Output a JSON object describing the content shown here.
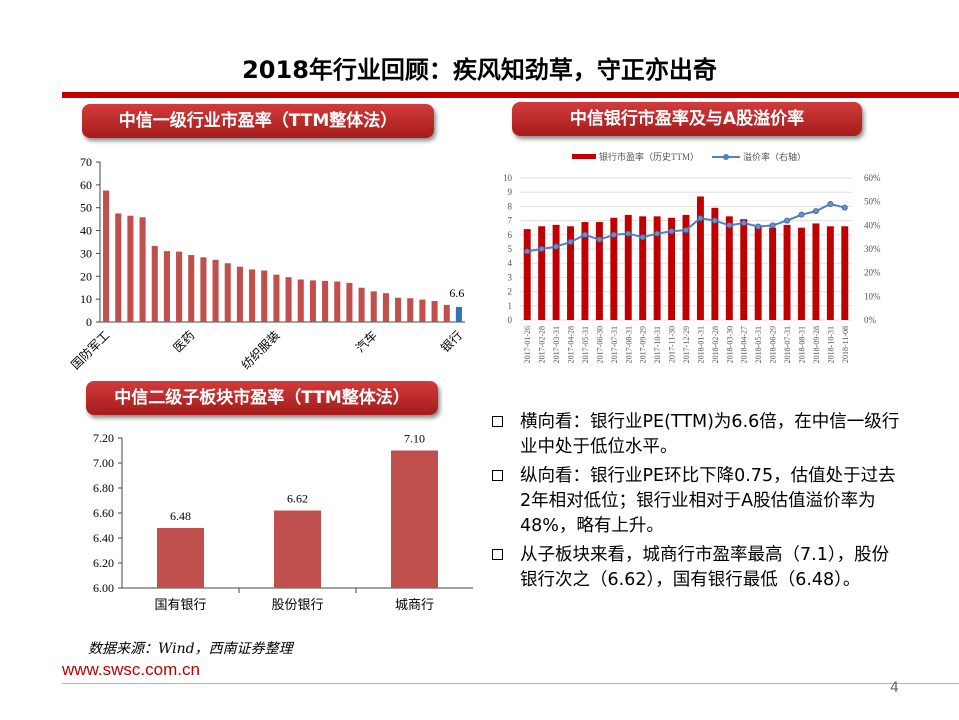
{
  "title": "2018年行业回顾：疾风知劲草，守正亦出奇",
  "pills": {
    "c1": "中信一级行业市盈率（TTM整体法）",
    "c2": "中信银行市盈率及与A股溢价率",
    "c3": "中信二级子板块市盈率（TTM整体法）"
  },
  "chart_data": [
    {
      "type": "bar",
      "ylim": [
        0,
        70
      ],
      "yticks": [
        "0",
        "10",
        "20",
        "30",
        "40",
        "50",
        "60",
        "70"
      ],
      "values": [
        57.5,
        47.5,
        46.5,
        45.8,
        33.3,
        31.0,
        30.8,
        29.3,
        28.3,
        27.2,
        25.7,
        24.2,
        23.0,
        22.5,
        20.7,
        19.6,
        18.6,
        18.2,
        18.0,
        17.7,
        17.1,
        15.0,
        13.4,
        12.6,
        10.6,
        10.4,
        9.8,
        9.2,
        7.5,
        6.6
      ],
      "highlight_index": 29,
      "highlight_label": "6.6",
      "category_labels": [
        {
          "index": 0,
          "text": "国防军工"
        },
        {
          "index": 7,
          "text": "医药"
        },
        {
          "index": 14,
          "text": "纺织服装"
        },
        {
          "index": 22,
          "text": "汽车"
        },
        {
          "index": 29,
          "text": "银行"
        }
      ]
    },
    {
      "type": "bar+line",
      "legend": [
        "银行市盈率（历史TTM）",
        "溢价率（右轴）"
      ],
      "left_ylim": [
        0,
        10
      ],
      "left_ticks": [
        "0",
        "1",
        "2",
        "3",
        "4",
        "5",
        "6",
        "7",
        "8",
        "9",
        "10"
      ],
      "right_ylim": [
        0,
        60
      ],
      "right_ticks": [
        "0%",
        "10%",
        "20%",
        "30%",
        "40%",
        "50%",
        "60%"
      ],
      "x": [
        "2017-01-26",
        "2017-02-28",
        "2017-03-31",
        "2017-04-28",
        "2017-05-31",
        "2017-06-30",
        "2017-07-31",
        "2017-08-31",
        "2017-09-29",
        "2017-10-31",
        "2017-11-30",
        "2017-12-29",
        "2018-01-31",
        "2018-02-28",
        "2018-03-30",
        "2018-04-27",
        "2018-05-31",
        "2018-06-29",
        "2018-07-31",
        "2018-08-31",
        "2018-09-28",
        "2018-10-31",
        "2018-11-08"
      ],
      "bars": [
        6.4,
        6.6,
        6.7,
        6.6,
        6.9,
        6.9,
        7.2,
        7.4,
        7.3,
        7.3,
        7.2,
        7.4,
        8.7,
        7.9,
        7.3,
        7.1,
        6.6,
        6.5,
        6.7,
        6.5,
        6.8,
        6.6,
        6.6
      ],
      "premium": [
        29,
        30,
        31,
        33,
        36,
        34,
        36,
        36.5,
        35,
        36.5,
        37.5,
        38,
        43,
        42,
        40,
        41,
        39.5,
        40,
        42,
        44.5,
        46,
        49,
        47.5
      ]
    },
    {
      "type": "bar",
      "ylim": [
        6.0,
        7.2
      ],
      "yticks": [
        "6.00",
        "6.20",
        "6.40",
        "6.60",
        "6.80",
        "7.00",
        "7.20"
      ],
      "categories": [
        "国有银行",
        "股份银行",
        "城商行"
      ],
      "values": [
        6.48,
        6.62,
        7.1
      ],
      "value_labels": [
        "6.48",
        "6.62",
        "7.10"
      ]
    }
  ],
  "bullets": [
    "横向看：银行业PE(TTM)为6.6倍，在中信一级行业中处于低位水平。",
    "纵向看：银行业PE环比下降0.75，估值处于过去2年相对低位；银行业相对于A股估值溢价率为48%，略有上升。",
    "从子板块来看，城商行市盈率最高（7.1），股份银行次之（6.62），国有银行最低（6.48）。"
  ],
  "source": "数据来源：Wind，西南证券整理",
  "url": "www.swsc.com.cn",
  "page_number": "4",
  "colors": {
    "accent": "#c00000",
    "bar": "#c0504d",
    "highlight": "#2e75b6",
    "line": "#4f81bd"
  }
}
